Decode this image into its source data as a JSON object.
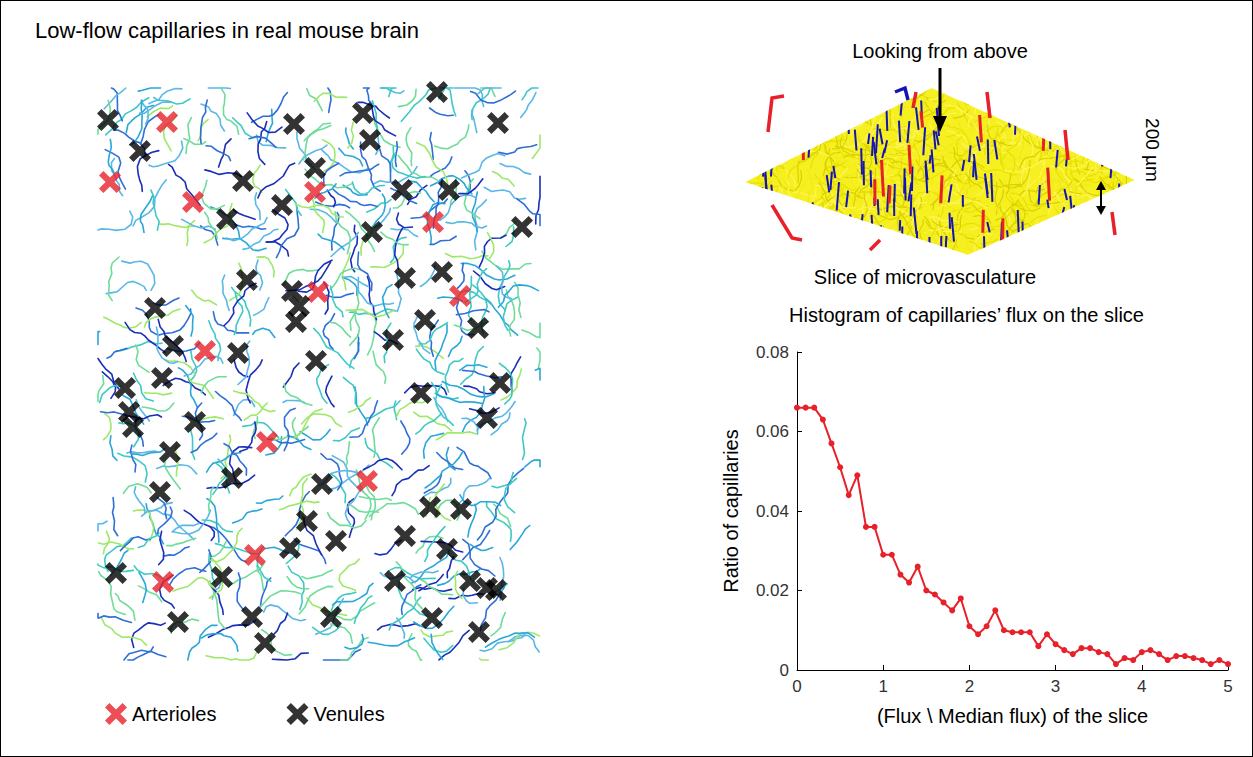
{
  "chart_data": [
    {
      "type": "scatter",
      "title": "Low-flow capillaries in real mouse brain",
      "xlim": [
        0,
        460
      ],
      "ylim": [
        0,
        600
      ],
      "tick_labels": false,
      "legend": "bottom",
      "series": [
        {
          "name": "Arterioles",
          "color": "#e8202a",
          "marker": "x",
          "x": [
            77,
            20,
            103,
            225,
            343,
            228,
            370,
            115,
            177,
            277,
            165,
            73
          ],
          "values": [
            42,
            102,
            122,
            112,
            142,
            212,
            216,
            271,
            362,
            401,
            475,
            502
          ]
        },
        {
          "name": "Venules",
          "color": "#000000",
          "marker": "x",
          "x": [
            18,
            50,
            204,
            273,
            280,
            347,
            408,
            153,
            225,
            192,
            137,
            312,
            359,
            282,
            432,
            157,
            202,
            315,
            352,
            65,
            209,
            206,
            335,
            388,
            83,
            303,
            148,
            226,
            72,
            35,
            331,
            410,
            39,
            43,
            105,
            80,
            397,
            142,
            232,
            70,
            217,
            340,
            371,
            246,
            315,
            200,
            357,
            26,
            132,
            305,
            380,
            397,
            406,
            88,
            162,
            175,
            241,
            342,
            389
          ],
          "values": [
            40,
            71,
            44,
            33,
            60,
            12,
            43,
            101,
            88,
            125,
            139,
            110,
            110,
            152,
            147,
            200,
            211,
            198,
            192,
            228,
            226,
            242,
            240,
            248,
            266,
            260,
            273,
            281,
            298,
            308,
            313,
            303,
            332,
            347,
            342,
            372,
            338,
            398,
            404,
            412,
            441,
            427,
            429,
            461,
            456,
            468,
            469,
            493,
            497,
            501,
            501,
            508,
            510,
            542,
            537,
            563,
            537,
            538,
            552
          ]
        }
      ]
    },
    {
      "type": "diagram",
      "title": "Slice of microvasculature",
      "annotations": [
        "Looking from above",
        "200 µm"
      ]
    },
    {
      "type": "line",
      "title": "Histogram of capillaries’ flux on the slice",
      "x_label": "(Flux \\ Median flux) of the slice",
      "y_label": "Ratio of capillaries",
      "color": "#e8202a",
      "marker": "circle",
      "x": [
        0,
        0.1,
        0.2,
        0.3,
        0.4,
        0.5,
        0.6,
        0.7,
        0.8,
        0.9,
        1.0,
        1.1,
        1.2,
        1.3,
        1.4,
        1.5,
        1.6,
        1.7,
        1.8,
        1.9,
        2.0,
        2.1,
        2.2,
        2.3,
        2.4,
        2.5,
        2.6,
        2.7,
        2.8,
        2.9,
        3.0,
        3.1,
        3.2,
        3.3,
        3.4,
        3.5,
        3.6,
        3.7,
        3.8,
        3.9,
        4.0,
        4.1,
        4.2,
        4.3,
        4.4,
        4.5,
        4.6,
        4.7,
        4.8,
        4.9,
        5.0
      ],
      "values": [
        0.066,
        0.066,
        0.066,
        0.063,
        0.057,
        0.051,
        0.044,
        0.049,
        0.036,
        0.036,
        0.029,
        0.029,
        0.024,
        0.022,
        0.026,
        0.02,
        0.019,
        0.017,
        0.015,
        0.018,
        0.011,
        0.009,
        0.011,
        0.015,
        0.01,
        0.0095,
        0.0095,
        0.0095,
        0.006,
        0.009,
        0.0065,
        0.005,
        0.004,
        0.0055,
        0.0055,
        0.0045,
        0.004,
        0.0015,
        0.003,
        0.0025,
        0.0045,
        0.005,
        0.004,
        0.0025,
        0.0035,
        0.0035,
        0.003,
        0.0025,
        0.0015,
        0.0025,
        0.0015
      ],
      "xlim": [
        0,
        5
      ],
      "ylim": [
        0,
        0.08
      ],
      "xticks": [
        0,
        1,
        2,
        3,
        4,
        5
      ],
      "yticks": [
        0,
        0.02,
        0.04,
        0.06,
        0.08
      ]
    }
  ]
}
